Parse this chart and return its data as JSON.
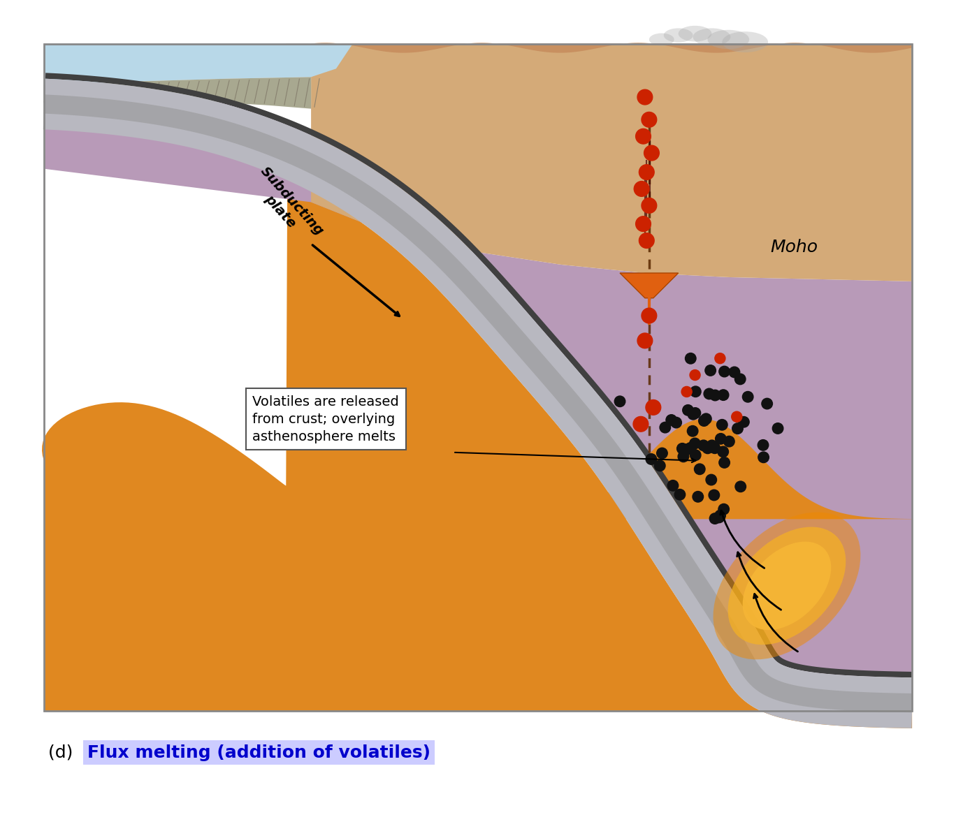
{
  "fig_width": 13.68,
  "fig_height": 12.0,
  "bg_color": "#ffffff",
  "title_text": "(d) Flux melting (addition of volatiles)",
  "title_color": "#0000cc",
  "title_highlight": "#ccccff",
  "moho_label": "Moho",
  "subducting_label": "Subducting\nplate",
  "annotation_text": "Volatiles are released\nfrom crust; overlying\nasthenosphere melts",
  "colors": {
    "ocean_water": "#b8d8e8",
    "crust_tan": "#d4a878",
    "crust_tan2": "#c89858",
    "crust_hatched": "#a09878",
    "mantle_wedge": "#b89ab8",
    "mantle_deep_purple": "#a08898",
    "asthenosphere": "#e08820",
    "slab_gray_light": "#b8b8c0",
    "slab_gray_mid": "#989898",
    "slab_dark_edge": "#404040",
    "lava_red": "#cc2200",
    "lava_dark_red": "#881100",
    "magma_orange": "#e06010",
    "magma_yellow": "#ffcc22",
    "magma_white": "#fff8cc",
    "smoke_gray": "#aaaaaa",
    "dot_black": "#111111",
    "border_brown": "#996633"
  }
}
